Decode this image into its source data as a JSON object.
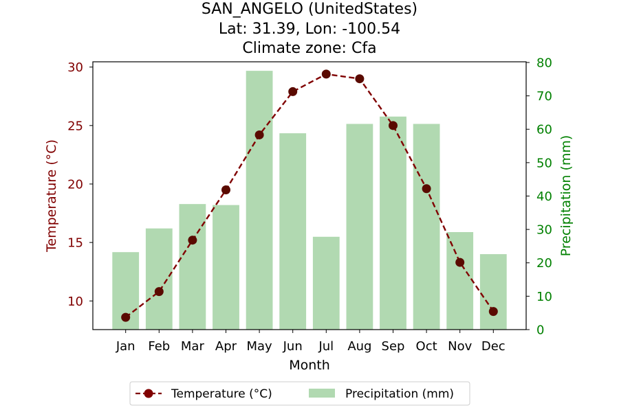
{
  "chart_data": {
    "type": "bar",
    "title": [
      "SAN_ANGELO (UnitedStates)",
      "Lat: 31.39, Lon: -100.54",
      "Climate zone: Cfa"
    ],
    "xlabel": "Month",
    "categories": [
      "Jan",
      "Feb",
      "Mar",
      "Apr",
      "May",
      "Jun",
      "Jul",
      "Aug",
      "Sep",
      "Oct",
      "Nov",
      "Dec"
    ],
    "series": [
      {
        "name": "Temperature (°C)",
        "type": "line",
        "axis": "left",
        "values": [
          8.6,
          10.8,
          15.2,
          19.5,
          24.2,
          27.9,
          29.4,
          29.0,
          25.0,
          19.6,
          13.3,
          9.1
        ],
        "color": "#800000",
        "line_style": "dashed",
        "marker": "circle"
      },
      {
        "name": "Precipitation (mm)",
        "type": "bar",
        "axis": "right",
        "values": [
          23.2,
          30.3,
          37.6,
          37.3,
          77.5,
          58.8,
          27.8,
          61.6,
          63.8,
          61.6,
          29.2,
          22.6
        ],
        "color": "#b1d9b1"
      }
    ],
    "left_axis": {
      "label": "Temperature (°C)",
      "range": [
        7.55,
        30.45
      ],
      "ticks": [
        10,
        15,
        20,
        25,
        30
      ],
      "color": "#800000"
    },
    "right_axis": {
      "label": "Precipitation (mm)",
      "range": [
        0,
        80.2
      ],
      "ticks": [
        0,
        10,
        20,
        30,
        40,
        50,
        60,
        70,
        80
      ],
      "color": "#008000"
    },
    "legend": {
      "position": "bottom-center",
      "entries": [
        "Temperature (°C)",
        "Precipitation (mm)"
      ]
    },
    "grid": false
  }
}
